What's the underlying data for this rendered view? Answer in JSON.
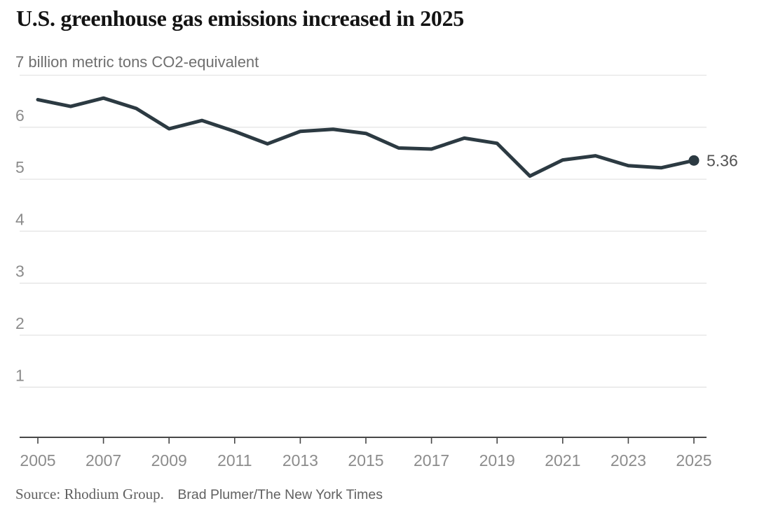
{
  "header": {
    "title": "U.S. greenhouse gas emissions increased in 2025",
    "subtitle": "7 billion metric tons CO2-equivalent"
  },
  "footer": {
    "source_prefix": "Source:",
    "source_name": "Rhodium Group.",
    "credit": "Brad Plumer/The New York Times"
  },
  "colors": {
    "background": "#ffffff",
    "title": "#131313",
    "subtitle": "#6f6f6f",
    "line": "#2c3a42",
    "end_dot": "#2c3a42",
    "end_label": "#535353",
    "grid": "#e4e4e4",
    "axis": "#474747",
    "axis_label": "#8c8c8c",
    "source": "#616161"
  },
  "chart_data": {
    "type": "line",
    "title": "U.S. greenhouse gas emissions increased in 2025",
    "unit_label": "7 billion metric tons CO2-equivalent",
    "xlabel": "",
    "ylabel": "billion metric tons CO2-equivalent",
    "series_name": "U.S. greenhouse gas emissions",
    "xlim": [
      2005,
      2025
    ],
    "ylim": [
      0,
      7
    ],
    "grid": "horizontal",
    "legend": "none",
    "y_grid_values": [
      7,
      6,
      5,
      4,
      3,
      2,
      1
    ],
    "y_tick_labels": [
      6,
      5,
      4,
      3,
      2,
      1
    ],
    "x_tick_years": [
      2005,
      2007,
      2009,
      2011,
      2013,
      2015,
      2017,
      2019,
      2021,
      2023,
      2025
    ],
    "x": [
      2005,
      2006,
      2007,
      2008,
      2009,
      2010,
      2011,
      2012,
      2013,
      2014,
      2015,
      2016,
      2017,
      2018,
      2019,
      2020,
      2021,
      2022,
      2023,
      2024,
      2025
    ],
    "values": [
      6.53,
      6.4,
      6.56,
      6.36,
      5.97,
      6.13,
      5.92,
      5.68,
      5.92,
      5.96,
      5.88,
      5.6,
      5.58,
      5.79,
      5.69,
      5.06,
      5.37,
      5.45,
      5.26,
      5.22,
      5.36
    ],
    "end_label": "5.36"
  }
}
